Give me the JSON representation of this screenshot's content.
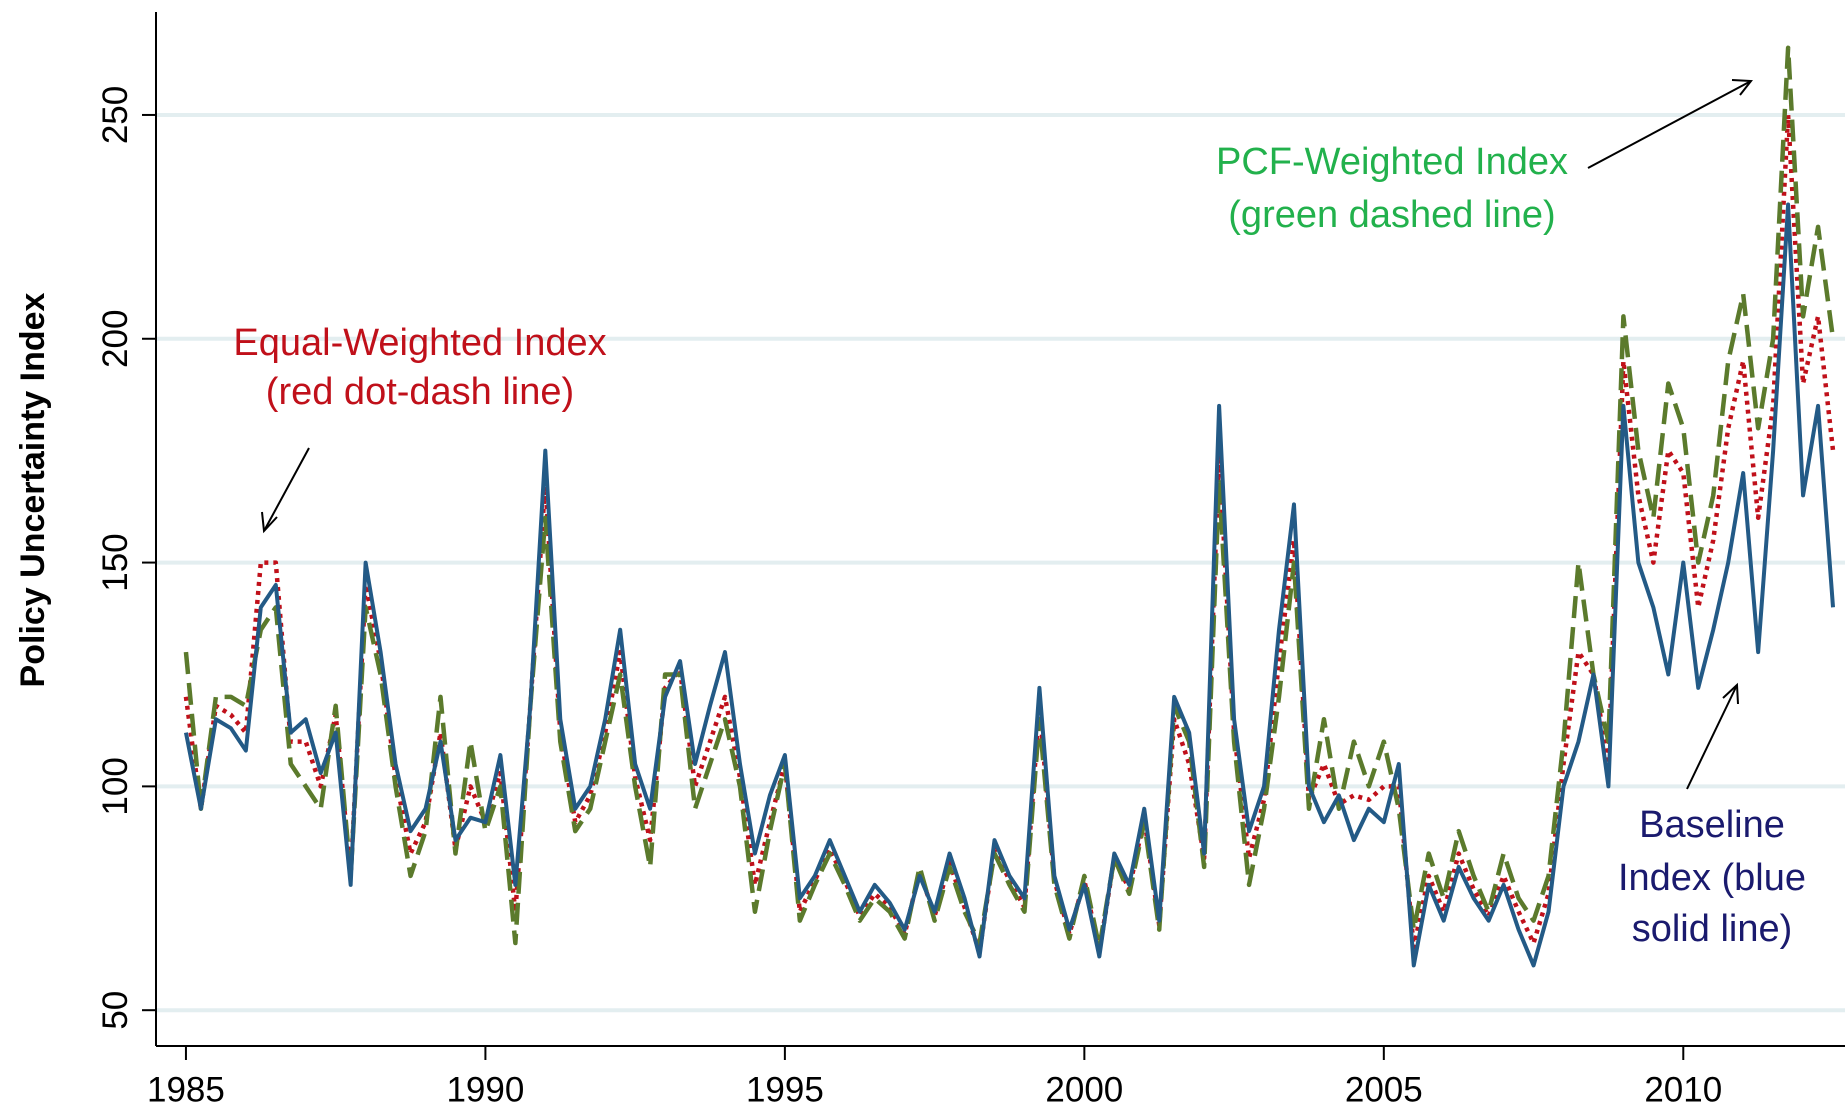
{
  "chart_data": {
    "type": "line",
    "y_label": "Policy Uncertainty Index",
    "xlim": [
      1984.5,
      2012.7
    ],
    "ylim": [
      42,
      273
    ],
    "xticks": [
      1985,
      1990,
      1995,
      2000,
      2005,
      2010
    ],
    "yticks": [
      50,
      100,
      150,
      200,
      250
    ],
    "grid": true,
    "x": [
      1985,
      1985.25,
      1985.5,
      1985.75,
      1986,
      1986.25,
      1986.5,
      1986.75,
      1987,
      1987.25,
      1987.5,
      1987.75,
      1988,
      1988.25,
      1988.5,
      1988.75,
      1989,
      1989.25,
      1989.5,
      1989.75,
      1990,
      1990.25,
      1990.5,
      1990.75,
      1991,
      1991.25,
      1991.5,
      1991.75,
      1992,
      1992.25,
      1992.5,
      1992.75,
      1993,
      1993.25,
      1993.5,
      1993.75,
      1994,
      1994.25,
      1994.5,
      1994.75,
      1995,
      1995.25,
      1995.5,
      1995.75,
      1996,
      1996.25,
      1996.5,
      1996.75,
      1997,
      1997.25,
      1997.5,
      1997.75,
      1998,
      1998.25,
      1998.5,
      1998.75,
      1999,
      1999.25,
      1999.5,
      1999.75,
      2000,
      2000.25,
      2000.5,
      2000.75,
      2001,
      2001.25,
      2001.5,
      2001.75,
      2002,
      2002.25,
      2002.5,
      2002.75,
      2003,
      2003.25,
      2003.5,
      2003.75,
      2004,
      2004.25,
      2004.5,
      2004.75,
      2005,
      2005.25,
      2005.5,
      2005.75,
      2006,
      2006.25,
      2006.5,
      2006.75,
      2007,
      2007.25,
      2007.5,
      2007.75,
      2008,
      2008.25,
      2008.5,
      2008.75,
      2009,
      2009.25,
      2009.5,
      2009.75,
      2010,
      2010.25,
      2010.5,
      2010.75,
      2011,
      2011.25,
      2011.5,
      2011.75,
      2012,
      2012.25,
      2012.5
    ],
    "series": [
      {
        "name": "Equal-Weighted Index",
        "color": "#c0101a",
        "dash": "dot",
        "values": [
          120,
          95,
          118,
          116,
          112,
          150,
          150,
          110,
          110,
          100,
          116,
          80,
          145,
          128,
          102,
          85,
          92,
          112,
          86,
          100,
          92,
          103,
          72,
          118,
          168,
          112,
          92,
          98,
          112,
          130,
          102,
          88,
          122,
          126,
          100,
          110,
          120,
          102,
          78,
          92,
          105,
          72,
          79,
          86,
          79,
          71,
          76,
          73,
          67,
          81,
          71,
          83,
          73,
          63,
          86,
          79,
          73,
          118,
          79,
          67,
          79,
          63,
          84,
          77,
          93,
          69,
          115,
          105,
          84,
          175,
          112,
          84,
          97,
          128,
          155,
          97,
          105,
          96,
          98,
          97,
          100,
          100,
          64,
          80,
          72,
          85,
          77,
          71,
          80,
          72,
          65,
          76,
          105,
          130,
          125,
          105,
          195,
          165,
          150,
          175,
          170,
          140,
          155,
          180,
          195,
          160,
          185,
          250,
          190,
          205,
          175
        ]
      },
      {
        "name": "PCF-Weighted Index",
        "color": "#5b7a2c",
        "dash": "dash",
        "values": [
          130,
          95,
          120,
          120,
          118,
          135,
          140,
          105,
          100,
          95,
          118,
          80,
          140,
          125,
          100,
          80,
          90,
          120,
          85,
          110,
          90,
          100,
          65,
          118,
          160,
          110,
          90,
          95,
          110,
          125,
          100,
          82,
          125,
          125,
          95,
          105,
          115,
          100,
          72,
          90,
          105,
          70,
          78,
          85,
          78,
          70,
          75,
          72,
          66,
          82,
          70,
          82,
          72,
          65,
          85,
          78,
          72,
          115,
          78,
          66,
          80,
          64,
          84,
          76,
          92,
          68,
          118,
          110,
          82,
          168,
          110,
          78,
          95,
          120,
          150,
          95,
          115,
          95,
          110,
          100,
          110,
          95,
          68,
          85,
          75,
          90,
          80,
          72,
          85,
          75,
          70,
          80,
          110,
          150,
          125,
          110,
          205,
          175,
          160,
          190,
          180,
          150,
          165,
          195,
          210,
          180,
          200,
          265,
          205,
          225,
          200
        ]
      },
      {
        "name": "Baseline Index",
        "color": "#235a86",
        "dash": "solid",
        "values": [
          112,
          95,
          115,
          113,
          108,
          140,
          145,
          112,
          115,
          103,
          112,
          78,
          150,
          130,
          105,
          90,
          95,
          110,
          88,
          93,
          92,
          107,
          78,
          118,
          175,
          115,
          95,
          100,
          115,
          135,
          105,
          95,
          120,
          128,
          105,
          118,
          130,
          105,
          85,
          98,
          107,
          75,
          80,
          88,
          80,
          72,
          78,
          74,
          68,
          80,
          72,
          85,
          75,
          62,
          88,
          80,
          75,
          122,
          80,
          68,
          78,
          62,
          85,
          78,
          95,
          70,
          120,
          112,
          85,
          185,
          115,
          90,
          100,
          135,
          163,
          100,
          92,
          98,
          88,
          95,
          92,
          105,
          60,
          78,
          70,
          82,
          75,
          70,
          78,
          68,
          60,
          72,
          100,
          110,
          125,
          100,
          185,
          150,
          140,
          125,
          150,
          122,
          135,
          150,
          170,
          130,
          175,
          230,
          165,
          185,
          140
        ]
      }
    ],
    "annotations": [
      {
        "lines": [
          "Equal-Weighted Index",
          "(red dot-dash line)"
        ],
        "color": "#c0101a"
      },
      {
        "lines": [
          "PCF-Weighted Index",
          "(green dashed line)"
        ],
        "color": "#22b14c"
      },
      {
        "lines": [
          "Baseline",
          "Index (blue",
          "solid line)"
        ],
        "color": "#1a1a6e"
      }
    ]
  }
}
